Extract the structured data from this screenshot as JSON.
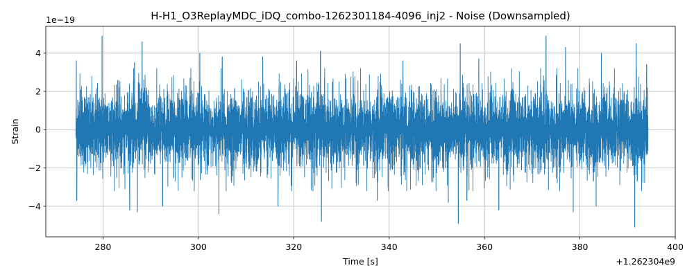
{
  "chart_data": {
    "type": "line",
    "title": "H-H1_O3ReplayMDC_iDQ_combo-1262301184-4096_inj2 - Noise (Downsampled)",
    "xlabel": "Time [s]",
    "ylabel": "Strain",
    "x_offset_text": "+1.262304e9",
    "y_scale_text": "1e−19",
    "xlim": [
      268,
      400
    ],
    "ylim": [
      -5.6,
      5.4
    ],
    "x_ticks": [
      280,
      300,
      320,
      340,
      360,
      380,
      400
    ],
    "x_tick_labels": [
      "280",
      "300",
      "320",
      "340",
      "360",
      "380",
      "400"
    ],
    "y_ticks": [
      -4,
      -2,
      0,
      2,
      4
    ],
    "y_tick_labels": [
      "−4",
      "−2",
      "0",
      "2",
      "4"
    ],
    "grid": true,
    "legend": "none",
    "series_color": "#1f77b4",
    "x_range": [
      274.3,
      394.3
    ],
    "typical_amplitude": 1.8,
    "peaks": [
      {
        "x": 274.4,
        "y": 3.6
      },
      {
        "x": 274.5,
        "y": -3.7
      },
      {
        "x": 279.8,
        "y": 4.9
      },
      {
        "x": 285.6,
        "y": -4.2
      },
      {
        "x": 286.6,
        "y": 3.5
      },
      {
        "x": 287.2,
        "y": -4.3
      },
      {
        "x": 288.2,
        "y": 4.6
      },
      {
        "x": 292.5,
        "y": -4.0
      },
      {
        "x": 300.3,
        "y": 4.0
      },
      {
        "x": 304.3,
        "y": -4.4
      },
      {
        "x": 305.0,
        "y": 3.8
      },
      {
        "x": 313.5,
        "y": 3.8
      },
      {
        "x": 316.7,
        "y": -4.0
      },
      {
        "x": 320.6,
        "y": 3.6
      },
      {
        "x": 325.6,
        "y": 4.1
      },
      {
        "x": 325.8,
        "y": -4.8
      },
      {
        "x": 337.5,
        "y": -3.7
      },
      {
        "x": 342.9,
        "y": 3.6
      },
      {
        "x": 352.4,
        "y": -3.8
      },
      {
        "x": 354.5,
        "y": -4.9
      },
      {
        "x": 354.9,
        "y": 4.5
      },
      {
        "x": 356.3,
        "y": -3.7
      },
      {
        "x": 358.8,
        "y": 3.7
      },
      {
        "x": 363.0,
        "y": -4.2
      },
      {
        "x": 372.9,
        "y": 4.9
      },
      {
        "x": 377.0,
        "y": 4.3
      },
      {
        "x": 378.6,
        "y": -4.3
      },
      {
        "x": 383.4,
        "y": -4.0
      },
      {
        "x": 384.5,
        "y": 4.0
      },
      {
        "x": 391.8,
        "y": 4.5
      },
      {
        "x": 391.5,
        "y": -5.1
      },
      {
        "x": 394.0,
        "y": 3.4
      }
    ]
  }
}
